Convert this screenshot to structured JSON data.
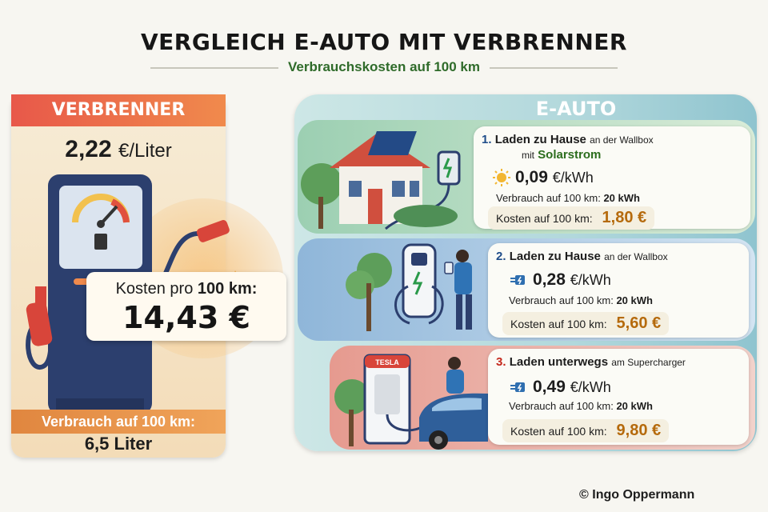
{
  "header": {
    "title": "VERGLEICH E-AUTO MIT VERBRENNER",
    "subtitle": "Verbrauchskosten auf 100 km"
  },
  "verbrenner": {
    "heading": "VERBRENNER",
    "price_value": "2,22",
    "price_unit": "€/Liter",
    "cost_label_prefix": "Kosten pro",
    "cost_label_bold": "100 km:",
    "cost_value": "14,43 €",
    "consumption_label": "Verbrauch auf 100 km:",
    "consumption_value": "6,5 Liter"
  },
  "eauto": {
    "heading": "E-AUTO",
    "options": [
      {
        "number": "1.",
        "title_bold": "Laden zu Hause",
        "title_small": "an der Wallbox",
        "title_line2_small": "mit",
        "title_line2_bold": "Solarstrom",
        "kwh_value": "0,09",
        "kwh_unit": "€/kWh",
        "consumption_prefix": "Verbrauch auf 100 km:",
        "consumption_value": "20 kWh",
        "cost_label": "Kosten auf 100 km:",
        "cost_value": "1,80 €",
        "icon": "sun-icon"
      },
      {
        "number": "2.",
        "title_bold": "Laden zu Hause",
        "title_small": "an der Wallbox",
        "kwh_value": "0,28",
        "kwh_unit": "€/kWh",
        "consumption_prefix": "Verbrauch auf 100 km:",
        "consumption_value": "20 kWh",
        "cost_label": "Kosten auf 100 km:",
        "cost_value": "5,60 €",
        "icon": "plug-icon"
      },
      {
        "number": "3.",
        "title_bold": "Laden unterwegs",
        "title_small": "am Supercharger",
        "kwh_value": "0,49",
        "kwh_unit": "€/kWh",
        "consumption_prefix": "Verbrauch auf 100 km:",
        "consumption_value": "20 kWh",
        "cost_label": "Kosten auf 100 km:",
        "cost_value": "9,80 €",
        "icon": "plug-icon"
      }
    ]
  },
  "supercharger_sign": "TESLA",
  "footer": {
    "copyright_symbol": "©",
    "author": "Ingo Oppermann"
  },
  "colors": {
    "verbrenner_header": "#e8584a",
    "consumption_bar": "#e0863f",
    "cost_value": "#b56a0c",
    "green_accent": "#2b6d1d",
    "red_accent": "#c4281c",
    "number_blue": "#1f4d8a"
  }
}
